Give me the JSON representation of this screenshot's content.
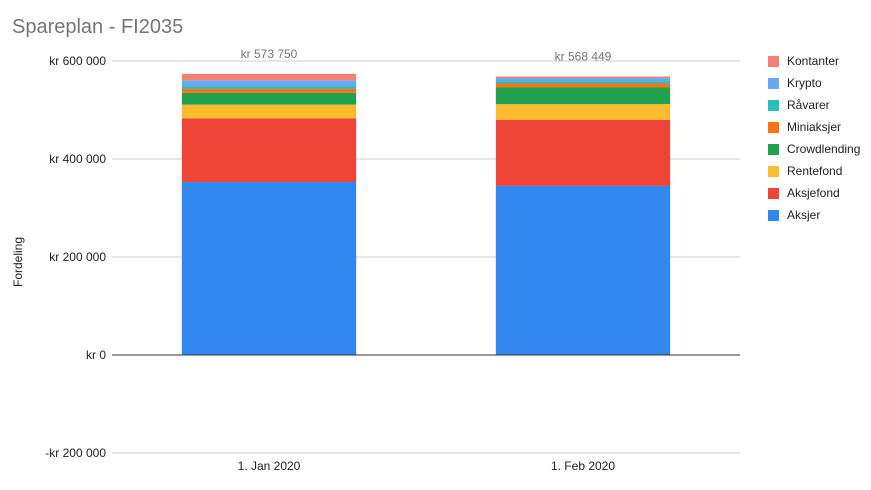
{
  "chart_data": {
    "type": "bar",
    "stacked": true,
    "title": "Spareplan - FI2035",
    "ylabel": "Fordeling",
    "xlabel": "",
    "categories": [
      "1. Jan 2020",
      "1. Feb 2020"
    ],
    "ylim": [
      -200000,
      600000
    ],
    "yticks": [
      600000,
      400000,
      200000,
      0,
      -200000
    ],
    "ytick_labels": [
      "kr  600 000",
      "kr  400 000",
      "kr  200 000",
      "kr   0",
      "-kr  200 000"
    ],
    "totals": [
      "kr  573 750",
      "kr  568 449"
    ],
    "grid": true,
    "legend_position": "right",
    "series": [
      {
        "name": "Aksjer",
        "color": "#3287ef",
        "values": [
          353000,
          345000
        ]
      },
      {
        "name": "Aksjefond",
        "color": "#ee4538",
        "values": [
          130000,
          135000
        ]
      },
      {
        "name": "Rentefond",
        "color": "#fbbc2e",
        "values": [
          28000,
          32000
        ]
      },
      {
        "name": "Crowdlending",
        "color": "#20a14f",
        "values": [
          24000,
          34000
        ]
      },
      {
        "name": "Miniaksjer",
        "color": "#fd7215",
        "values": [
          8000,
          8000
        ]
      },
      {
        "name": "Råvarer",
        "color": "#25bfbc",
        "values": [
          5000,
          5000
        ]
      },
      {
        "name": "Krypto",
        "color": "#6aa9f2",
        "values": [
          12750,
          6449
        ]
      },
      {
        "name": "Kontanter",
        "color": "#f38072",
        "values": [
          13000,
          3000
        ]
      }
    ]
  }
}
